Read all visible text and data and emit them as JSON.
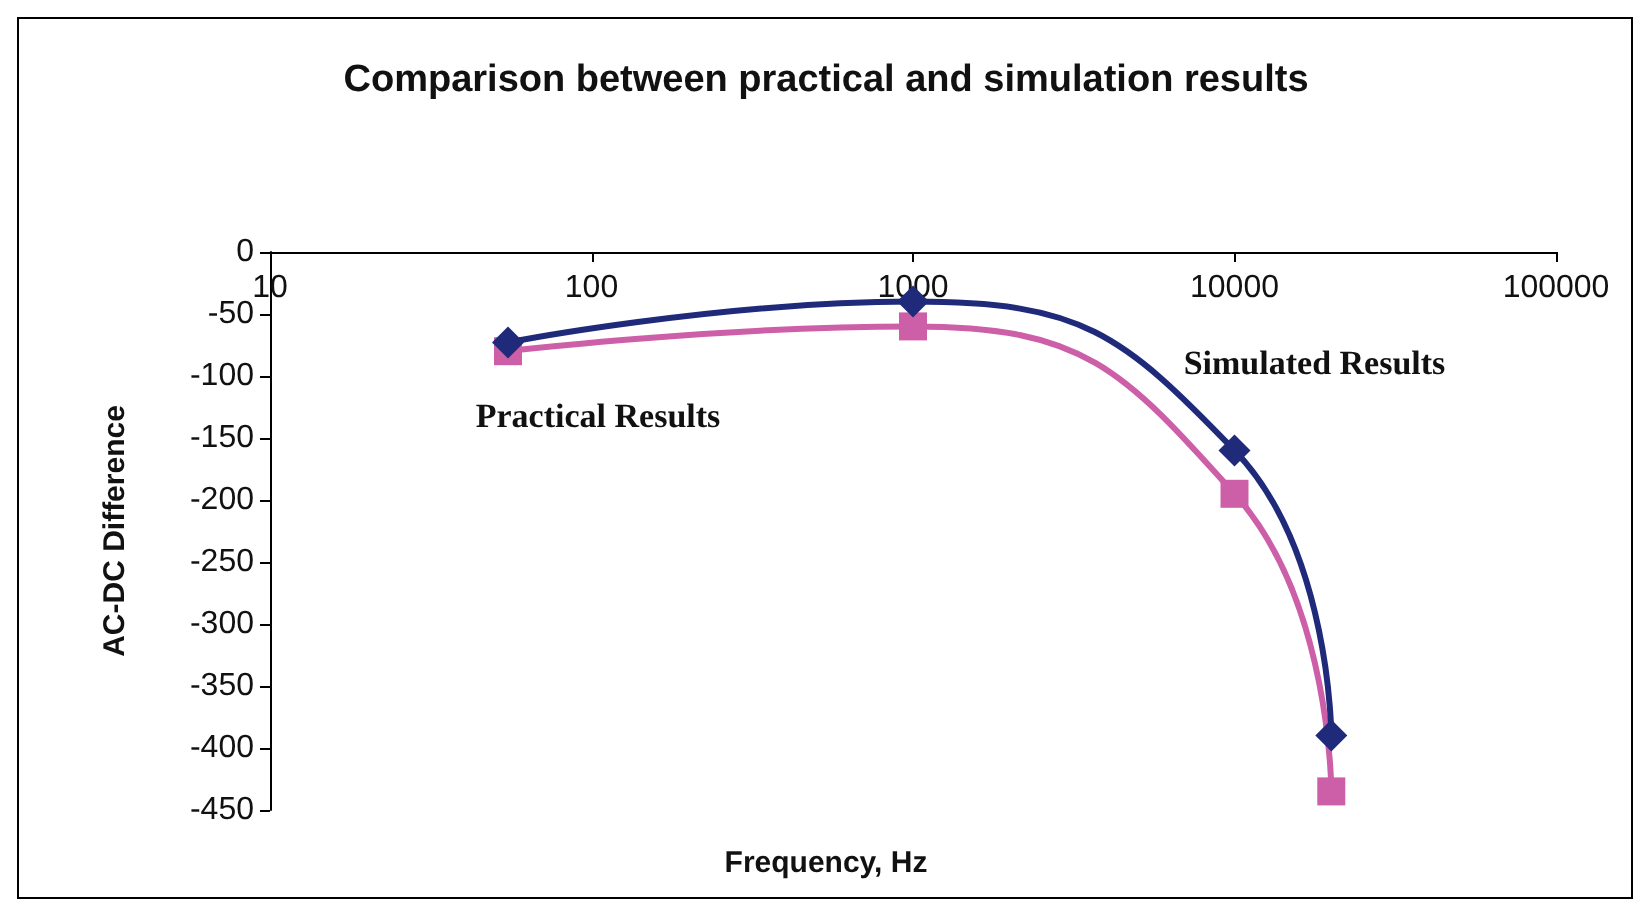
{
  "chart_data": {
    "type": "line",
    "title": "Comparison between practical and simulation results",
    "xlabel": "Frequency, Hz",
    "ylabel": "AC-DC Difference",
    "log": "x",
    "xlim": [
      10,
      100000
    ],
    "xticks": [
      10,
      100,
      1000,
      10000,
      100000
    ],
    "ylim": [
      -450,
      0
    ],
    "yticks": [
      0,
      -50,
      -100,
      -150,
      -200,
      -250,
      -300,
      -350,
      -400,
      -450
    ],
    "grid": false,
    "legend": false,
    "x": [
      55,
      1000,
      10000,
      20000
    ],
    "series": [
      {
        "name": "Simulated Results",
        "color": "#1f2a7a",
        "marker": "diamond",
        "values": [
          -73,
          -40,
          -160,
          -390
        ]
      },
      {
        "name": "Practical Results",
        "color": "#cc5fa8",
        "marker": "square",
        "values": [
          -80,
          -60,
          -195,
          -435
        ]
      }
    ]
  }
}
